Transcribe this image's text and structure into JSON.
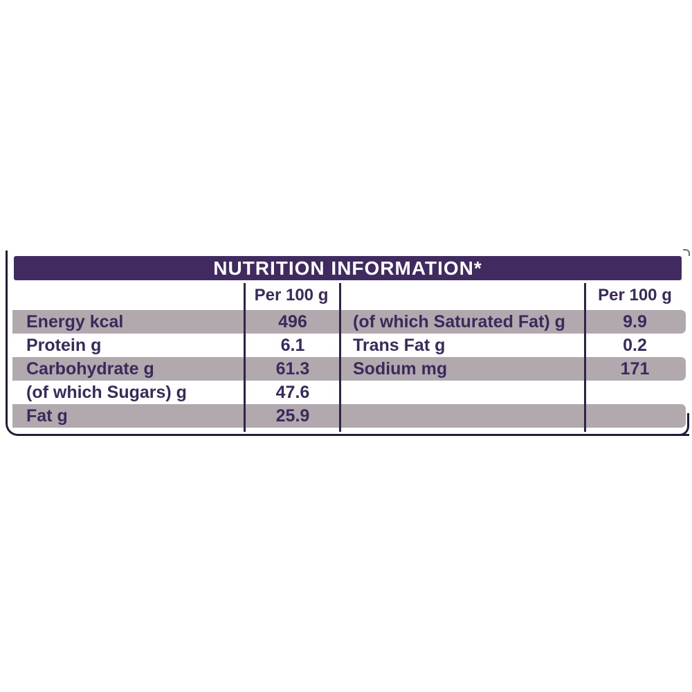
{
  "table": {
    "title": "NUTRITION INFORMATION*",
    "column_header_left": "Per 100 g",
    "column_header_right": "Per 100 g",
    "left_rows": [
      {
        "label": "Energy kcal",
        "value": "496"
      },
      {
        "label": "Protein g",
        "value": "6.1"
      },
      {
        "label": "Carbohydrate g",
        "value": "61.3"
      },
      {
        "label": "(of which Sugars) g",
        "value": "47.6"
      },
      {
        "label": "Fat g",
        "value": "25.9"
      }
    ],
    "right_rows": [
      {
        "label": "(of which Saturated Fat) g",
        "value": "9.9"
      },
      {
        "label": "Trans Fat g",
        "value": "0.2"
      },
      {
        "label": "Sodium mg",
        "value": "171"
      },
      {
        "label": "",
        "value": ""
      },
      {
        "label": "",
        "value": ""
      }
    ],
    "colors": {
      "header_bg": "#402a60",
      "row_shade": "#b2a9ae",
      "text_dark": "#3a2a5c",
      "grid_line": "#2f2347",
      "frame_line": "#241b3a",
      "title_text": "#ffffff"
    }
  }
}
